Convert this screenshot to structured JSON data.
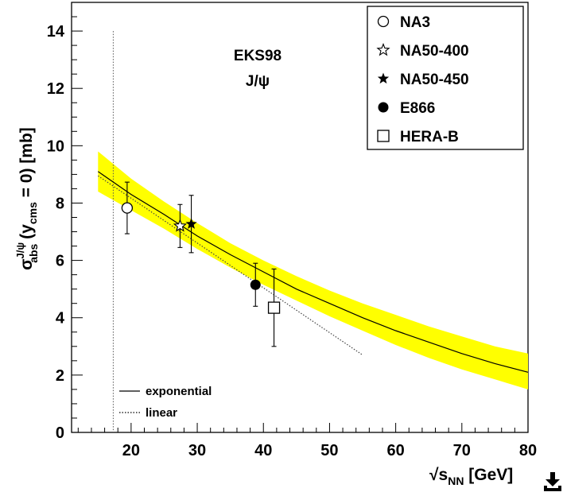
{
  "chart_data": {
    "type": "scatter",
    "title": "",
    "annotations": [
      "EKS98",
      "J/ψ"
    ],
    "xlabel": {
      "radical": "√",
      "main": "s",
      "sub": "NN",
      "unit": " [GeV]"
    },
    "ylabel": {
      "main": "σ",
      "sup": "J/ψ",
      "sub": "abs",
      "mid": " (y",
      "sub2": "cms",
      "end": " = 0) [mb]"
    },
    "xlim": [
      11,
      80
    ],
    "ylim": [
      0,
      15
    ],
    "xticks": [
      20,
      30,
      40,
      50,
      60,
      70,
      80
    ],
    "yticks": [
      0,
      2,
      4,
      6,
      8,
      10,
      12,
      14
    ],
    "grid": false,
    "legend_position": "top-right",
    "series": [
      {
        "name": "NA3",
        "marker": "open-circle",
        "points": [
          {
            "x": 19.4,
            "y": 7.83,
            "err": 0.9
          }
        ]
      },
      {
        "name": "NA50-400",
        "marker": "open-star",
        "points": [
          {
            "x": 27.4,
            "y": 7.2,
            "err": 0.75
          }
        ]
      },
      {
        "name": "NA50-450",
        "marker": "filled-star",
        "points": [
          {
            "x": 29.1,
            "y": 7.27,
            "err": 1.0
          }
        ]
      },
      {
        "name": "E866",
        "marker": "filled-circle",
        "points": [
          {
            "x": 38.8,
            "y": 5.15,
            "err": 0.75
          }
        ]
      },
      {
        "name": "HERA-B",
        "marker": "open-square",
        "points": [
          {
            "x": 41.6,
            "y": 4.35,
            "err": 1.35
          }
        ]
      }
    ],
    "fits": [
      {
        "name": "exponential",
        "style": "solid",
        "x": [
          15,
          20,
          25,
          30,
          35,
          40,
          45,
          50,
          55,
          60,
          65,
          70,
          75,
          80
        ],
        "y": [
          9.1,
          8.3,
          7.6,
          6.85,
          6.2,
          5.6,
          5.0,
          4.5,
          4.0,
          3.55,
          3.15,
          2.75,
          2.4,
          2.1
        ]
      },
      {
        "name": "linear",
        "style": "dotted",
        "x": [
          15,
          55
        ],
        "y": [
          8.95,
          2.7
        ]
      }
    ],
    "band": {
      "color": "#ffff00",
      "x": [
        15,
        20,
        25,
        30,
        35,
        40,
        45,
        50,
        55,
        60,
        65,
        70,
        75,
        80
      ],
      "upper": [
        9.8,
        8.85,
        8.05,
        7.3,
        6.6,
        6.0,
        5.45,
        4.95,
        4.5,
        4.1,
        3.7,
        3.35,
        3.0,
        2.75
      ],
      "lower": [
        8.4,
        7.75,
        7.1,
        6.4,
        5.75,
        5.15,
        4.6,
        4.05,
        3.55,
        3.05,
        2.6,
        2.2,
        1.85,
        1.5
      ]
    },
    "reference_line": {
      "x": 17.3,
      "style": "dotted"
    }
  },
  "icons": {
    "download": "download-icon"
  }
}
